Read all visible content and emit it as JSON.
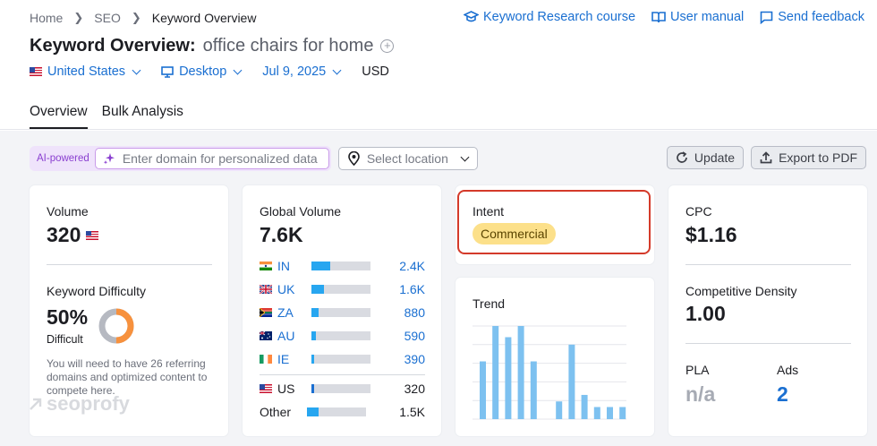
{
  "breadcrumb": [
    "Home",
    "SEO",
    "Keyword Overview"
  ],
  "top_links": {
    "course": "Keyword Research course",
    "manual": "User manual",
    "feedback": "Send feedback"
  },
  "title": {
    "label": "Keyword Overview:",
    "keyword": "office chairs for home"
  },
  "filters": {
    "country": "United States",
    "device": "Desktop",
    "date": "Jul 9, 2025",
    "currency": "USD"
  },
  "tabs": [
    "Overview",
    "Bulk Analysis"
  ],
  "toolbar": {
    "ai_label": "AI-powered",
    "domain_placeholder": "Enter domain for personalized data",
    "location_placeholder": "Select location",
    "update": "Update",
    "export": "Export to PDF"
  },
  "volume": {
    "label": "Volume",
    "value": "320"
  },
  "kd": {
    "label": "Keyword Difficulty",
    "value": "50%",
    "level": "Difficult",
    "percent": 50,
    "description": "You will need to have 26 referring domains and optimized content to compete here.",
    "color": "#f7913d"
  },
  "global_volume": {
    "label": "Global Volume",
    "value": "7.6K",
    "countries": [
      {
        "code": "IN",
        "value": "2.4K",
        "share": 0.32,
        "flag": "in-flag-icon"
      },
      {
        "code": "UK",
        "value": "1.6K",
        "share": 0.21,
        "flag": "uk-flag-icon"
      },
      {
        "code": "ZA",
        "value": "880",
        "share": 0.12,
        "flag": "za-flag-icon"
      },
      {
        "code": "AU",
        "value": "590",
        "share": 0.08,
        "flag": "au-flag-icon"
      },
      {
        "code": "IE",
        "value": "390",
        "share": 0.05,
        "flag": "ie-flag-icon"
      }
    ],
    "us": {
      "code": "US",
      "value": "320",
      "share": 0.04
    },
    "other": {
      "label": "Other",
      "value": "1.5K",
      "share": 0.2
    }
  },
  "intent": {
    "label": "Intent",
    "value": "Commercial",
    "color": "#fce08a"
  },
  "trend": {
    "label": "Trend",
    "values": [
      0.62,
      1.0,
      0.88,
      1.0,
      0.62,
      0,
      0.19,
      0.8,
      0.26,
      0.13,
      0.13,
      0.13
    ]
  },
  "cpc": {
    "label": "CPC",
    "value": "$1.16"
  },
  "competitive_density": {
    "label": "Competitive Density",
    "value": "1.00"
  },
  "pla": {
    "label": "PLA",
    "value": "n/a"
  },
  "ads": {
    "label": "Ads",
    "value": "2"
  },
  "watermark": "seoprofy"
}
